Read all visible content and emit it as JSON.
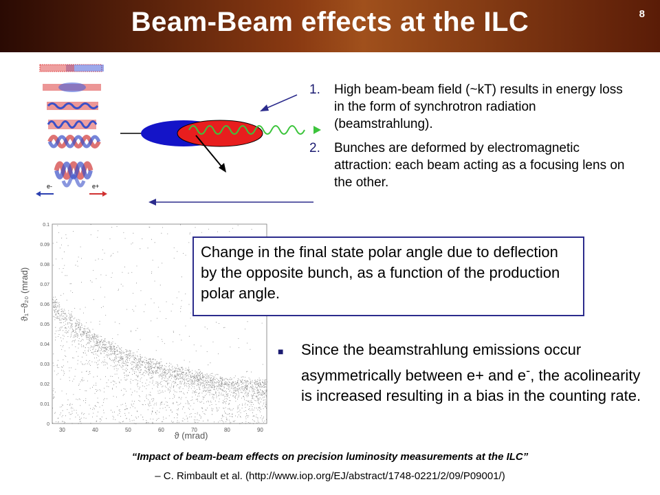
{
  "slide": {
    "title": "Beam-Beam effects at the ILC",
    "number": "8"
  },
  "beam_stack": {
    "label_left": "e-",
    "label_right": "e+"
  },
  "points": [
    {
      "num": "1.",
      "text": "High beam-beam field (~kT) results in energy loss in the form of synchrotron radiation (beamstrahlung)."
    },
    {
      "num": "2.",
      "text": "Bunches are deformed by electromagnetic attraction: each beam acting as a focusing lens on the other."
    }
  ],
  "callout": {
    "text": "Change in the final state polar angle due to deflection by the opposite bunch, as a function of the production polar angle."
  },
  "bullet": {
    "text_a": "Since the beamstrahlung emissions occur asymmetrically between e+ and e",
    "sup": "-",
    "text_b": ", the acolinearity is increased resulting in a bias in the counting rate."
  },
  "chart_data": {
    "type": "scatter",
    "xlabel": "ϑ (mrad)",
    "ylabel": "ϑ₁−ϑ₂₀ (mrad)",
    "x_ticks": [
      "30",
      "40",
      "50",
      "60",
      "70",
      "80",
      "90"
    ],
    "y_ticks": [
      "0",
      "0.01",
      "0.02",
      "0.03",
      "0.04",
      "0.05",
      "0.06",
      "0.07",
      "0.08",
      "0.09",
      "0.1"
    ],
    "xlim": [
      27,
      92
    ],
    "ylim": [
      0,
      0.1
    ],
    "band_center": [
      {
        "x": 27,
        "y": 0.065
      },
      {
        "x": 30,
        "y": 0.058
      },
      {
        "x": 40,
        "y": 0.044
      },
      {
        "x": 50,
        "y": 0.036
      },
      {
        "x": 60,
        "y": 0.03
      },
      {
        "x": 70,
        "y": 0.026
      },
      {
        "x": 80,
        "y": 0.023
      },
      {
        "x": 90,
        "y": 0.021
      }
    ]
  },
  "reference": {
    "title": "“Impact of beam-beam effects on precision luminosity measurements at the ILC”",
    "citation": "– C. Rimbault et al.  (http://www.iop.org/EJ/abstract/1748-0221/2/09/P09001/)"
  }
}
